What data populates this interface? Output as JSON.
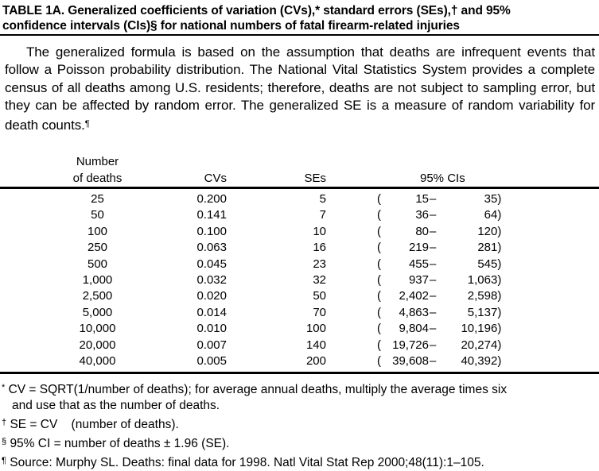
{
  "colors": {
    "background": "#ffffff",
    "text": "#000000",
    "rule": "#000000"
  },
  "title": {
    "line1": "TABLE 1A. Generalized coefficients of variation (CVs),* standard errors (SEs),† and 95%",
    "line2": "confidence intervals (CIs)§ for national numbers of fatal firearm-related injuries"
  },
  "intro": {
    "text": "The generalized formula is based on the assumption that deaths are infrequent events that follow a Poisson probability distribution. The National Vital Statistics System provides a complete census of all deaths among U.S. residents; therefore, deaths are not subject to sampling error, but they can be affected by random error. The generalized SE is a measure of random variability for death counts.",
    "marker": "¶"
  },
  "table": {
    "header": {
      "col1_line1": "Number",
      "col1_line2": "of deaths",
      "col2": "CVs",
      "col3": "SEs",
      "col4": "95% CIs"
    },
    "ci": {
      "open": "(",
      "dash": "–",
      "close": ")"
    },
    "rows": [
      {
        "deaths": "25",
        "cv": "0.200",
        "se": "5",
        "ci_low": "15",
        "ci_high": "35"
      },
      {
        "deaths": "50",
        "cv": "0.141",
        "se": "7",
        "ci_low": "36",
        "ci_high": "64"
      },
      {
        "deaths": "100",
        "cv": "0.100",
        "se": "10",
        "ci_low": "80",
        "ci_high": "120"
      },
      {
        "deaths": "250",
        "cv": "0.063",
        "se": "16",
        "ci_low": "219",
        "ci_high": "281"
      },
      {
        "deaths": "500",
        "cv": "0.045",
        "se": "23",
        "ci_low": "455",
        "ci_high": "545"
      },
      {
        "deaths": "1,000",
        "cv": "0.032",
        "se": "32",
        "ci_low": "937",
        "ci_high": "1,063"
      },
      {
        "deaths": "2,500",
        "cv": "0.020",
        "se": "50",
        "ci_low": "2,402",
        "ci_high": "2,598"
      },
      {
        "deaths": "5,000",
        "cv": "0.014",
        "se": "70",
        "ci_low": "4,863",
        "ci_high": "5,137"
      },
      {
        "deaths": "10,000",
        "cv": "0.010",
        "se": "100",
        "ci_low": "9,804",
        "ci_high": "10,196"
      },
      {
        "deaths": "20,000",
        "cv": "0.007",
        "se": "140",
        "ci_low": "19,726",
        "ci_high": "20,274"
      },
      {
        "deaths": "40,000",
        "cv": "0.005",
        "se": "200",
        "ci_low": "39,608",
        "ci_high": "40,392"
      }
    ]
  },
  "footnotes": [
    {
      "marker": "*",
      "text": "CV = SQRT(1/number of deaths); for average annual deaths, multiply the average times six and use that as the number of deaths."
    },
    {
      "marker": "†",
      "text": "SE = CV    (number of deaths)."
    },
    {
      "marker": "§",
      "text": "95% CI = number of deaths ± 1.96 (SE)."
    },
    {
      "marker": "¶",
      "text": "Source: Murphy SL. Deaths: final data for 1998. Natl Vital Stat Rep 2000;48(11):1–105."
    }
  ]
}
